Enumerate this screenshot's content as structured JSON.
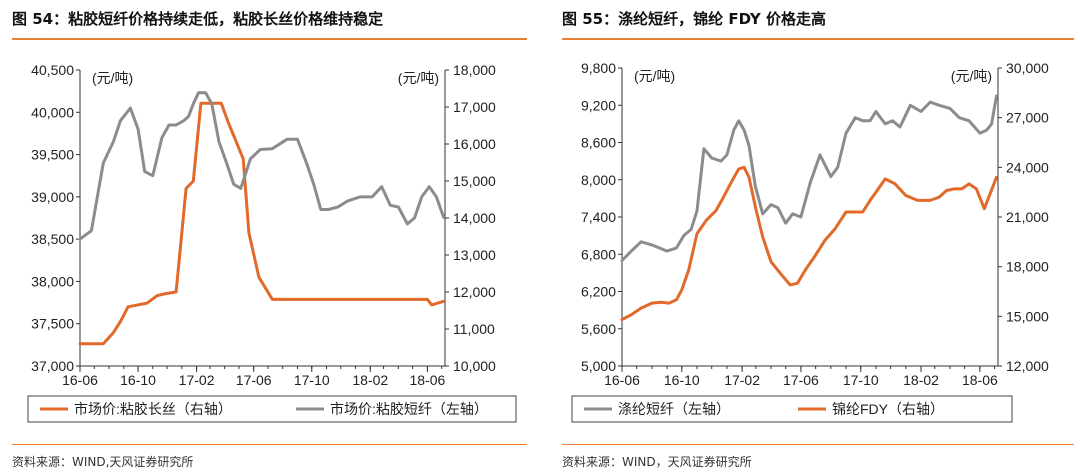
{
  "figures": [
    {
      "title": "图 54：粘胶短纤价格持续走低，粘胶长丝价格维持稳定",
      "source": "资料来源：WIND,天风证券研究所"
    },
    {
      "title": "图 55：涤纶短纤，锦纶 FDY 价格走高",
      "source": "资料来源：WIND，天风证券研究所"
    }
  ],
  "chart_data": [
    {
      "type": "line",
      "x_ticks": [
        "16-06",
        "16-10",
        "17-02",
        "17-06",
        "17-10",
        "18-02",
        "18-06"
      ],
      "left_unit": "(元/吨)",
      "right_unit": "(元/吨)",
      "y_left": {
        "range": [
          37000,
          40500
        ],
        "ticks": [
          "37,000",
          "37,500",
          "38,000",
          "38,500",
          "39,000",
          "39,500",
          "40,000",
          "40,500"
        ]
      },
      "y_right": {
        "range": [
          10000,
          18000
        ],
        "ticks": [
          "10,000",
          "11,000",
          "12,000",
          "13,000",
          "14,000",
          "15,000",
          "16,000",
          "17,000",
          "18,000"
        ]
      },
      "colors": {
        "orange": "#e3692a",
        "gray": "#8c8c8c"
      },
      "series": [
        {
          "name": "市场价:粘胶长丝（右轴）",
          "axis": "right",
          "color": "orange",
          "x": [
            "2016-06-01",
            "2016-07-20",
            "2016-08-10",
            "2016-08-25",
            "2016-09-10",
            "2016-10-20",
            "2016-11-10",
            "2016-11-25",
            "2016-12-20",
            "2017-01-10",
            "2017-01-25",
            "2017-02-10",
            "2017-03-25",
            "2017-04-08",
            "2017-05-10",
            "2017-05-22",
            "2017-06-12",
            "2017-07-10",
            "2018-06-01",
            "2018-06-10",
            "2018-07-05"
          ],
          "y": [
            10600,
            10600,
            10900,
            11200,
            11600,
            11700,
            11900,
            11950,
            12000,
            14800,
            15000,
            17100,
            17100,
            16600,
            15600,
            13600,
            12400,
            11800,
            11800,
            11650,
            11750
          ]
        },
        {
          "name": "市场价:粘胶短纤（左轴）",
          "axis": "left",
          "color": "gray",
          "x": [
            "2016-06-01",
            "2016-06-25",
            "2016-07-20",
            "2016-08-10",
            "2016-08-25",
            "2016-09-15",
            "2016-10-01",
            "2016-10-15",
            "2016-11-01",
            "2016-11-20",
            "2016-12-05",
            "2016-12-20",
            "2017-01-05",
            "2017-01-15",
            "2017-01-25",
            "2017-02-05",
            "2017-02-20",
            "2017-03-05",
            "2017-03-20",
            "2017-04-05",
            "2017-04-20",
            "2017-05-05",
            "2017-05-25",
            "2017-06-15",
            "2017-07-10",
            "2017-08-10",
            "2017-09-01",
            "2017-09-20",
            "2017-10-05",
            "2017-10-20",
            "2017-11-05",
            "2017-11-25",
            "2017-12-15",
            "2018-01-10",
            "2018-02-05",
            "2018-02-25",
            "2018-03-15",
            "2018-04-01",
            "2018-04-20",
            "2018-05-05",
            "2018-05-20",
            "2018-06-05",
            "2018-06-20",
            "2018-07-05"
          ],
          "y": [
            38500,
            38600,
            39400,
            39650,
            39900,
            40050,
            39800,
            39300,
            39250,
            39700,
            39850,
            39850,
            39900,
            39950,
            40100,
            40230,
            40230,
            40100,
            39650,
            39400,
            39150,
            39100,
            39450,
            39560,
            39570,
            39680,
            39680,
            39400,
            39150,
            38850,
            38850,
            38880,
            38950,
            39000,
            39000,
            39120,
            38900,
            38880,
            38680,
            38750,
            39000,
            39120,
            39000,
            38760
          ]
        }
      ]
    },
    {
      "type": "line",
      "x_ticks": [
        "16-06",
        "16-10",
        "17-02",
        "17-06",
        "17-10",
        "18-02",
        "18-06"
      ],
      "left_unit": "(元/吨)",
      "right_unit": "(元/吨)",
      "y_left": {
        "range": [
          5000,
          9800
        ],
        "ticks": [
          "5,000",
          "5,600",
          "6,200",
          "6,800",
          "7,400",
          "8,000",
          "8,600",
          "9,200",
          "9,800"
        ]
      },
      "y_right": {
        "range": [
          12000,
          30000
        ],
        "ticks": [
          "12,000",
          "15,000",
          "18,000",
          "21,000",
          "24,000",
          "27,000",
          "30,000"
        ]
      },
      "colors": {
        "orange": "#e3692a",
        "gray": "#8c8c8c"
      },
      "series": [
        {
          "name": "涤纶短纤（左轴）",
          "axis": "left",
          "color": "gray",
          "x": [
            "2016-06-01",
            "2016-06-20",
            "2016-07-10",
            "2016-08-01",
            "2016-09-01",
            "2016-09-20",
            "2016-10-05",
            "2016-10-20",
            "2016-11-01",
            "2016-11-15",
            "2016-12-01",
            "2016-12-20",
            "2017-01-01",
            "2017-01-15",
            "2017-01-25",
            "2017-02-05",
            "2017-02-15",
            "2017-02-28",
            "2017-03-15",
            "2017-04-01",
            "2017-04-15",
            "2017-05-01",
            "2017-05-15",
            "2017-06-01",
            "2017-06-20",
            "2017-07-10",
            "2017-08-01",
            "2017-08-15",
            "2017-09-01",
            "2017-09-20",
            "2017-10-05",
            "2017-10-20",
            "2017-11-01",
            "2017-11-20",
            "2017-12-05",
            "2017-12-20",
            "2018-01-10",
            "2018-02-01",
            "2018-02-20",
            "2018-03-10",
            "2018-04-01",
            "2018-04-20",
            "2018-05-10",
            "2018-06-01",
            "2018-06-15",
            "2018-06-25",
            "2018-07-05"
          ],
          "y": [
            6700,
            6850,
            7000,
            6950,
            6850,
            6900,
            7100,
            7200,
            7500,
            8500,
            8350,
            8300,
            8400,
            8800,
            8950,
            8800,
            8550,
            7900,
            7450,
            7600,
            7550,
            7300,
            7450,
            7400,
            7950,
            8400,
            8050,
            8200,
            8750,
            9000,
            8950,
            8950,
            9100,
            8900,
            8950,
            8850,
            9200,
            9100,
            9250,
            9200,
            9150,
            9000,
            8950,
            8750,
            8800,
            8900,
            9350
          ]
        },
        {
          "name": "锦纶FDY（右轴）",
          "axis": "right",
          "color": "orange",
          "x": [
            "2016-06-01",
            "2016-06-20",
            "2016-07-10",
            "2016-08-01",
            "2016-08-20",
            "2016-09-05",
            "2016-09-20",
            "2016-10-01",
            "2016-10-15",
            "2016-11-01",
            "2016-11-20",
            "2016-12-10",
            "2016-12-25",
            "2017-01-10",
            "2017-01-25",
            "2017-02-05",
            "2017-02-15",
            "2017-03-01",
            "2017-03-15",
            "2017-04-01",
            "2017-04-20",
            "2017-05-10",
            "2017-05-25",
            "2017-06-10",
            "2017-07-01",
            "2017-07-20",
            "2017-08-10",
            "2017-09-01",
            "2017-09-20",
            "2017-10-05",
            "2017-10-20",
            "2017-11-01",
            "2017-11-20",
            "2017-12-10",
            "2018-01-01",
            "2018-01-25",
            "2018-02-20",
            "2018-03-10",
            "2018-03-25",
            "2018-04-10",
            "2018-04-25",
            "2018-05-10",
            "2018-05-25",
            "2018-06-10",
            "2018-07-05"
          ],
          "y": [
            14800,
            15100,
            15500,
            15800,
            15850,
            15800,
            16000,
            16600,
            17800,
            20000,
            20800,
            21400,
            22200,
            23100,
            23900,
            24000,
            23400,
            21500,
            19800,
            18300,
            17600,
            16900,
            17000,
            17800,
            18700,
            19600,
            20300,
            21300,
            21300,
            21300,
            22000,
            22500,
            23300,
            23000,
            22300,
            22000,
            22000,
            22200,
            22600,
            22700,
            22700,
            23000,
            22700,
            21500,
            23400
          ]
        }
      ]
    }
  ]
}
